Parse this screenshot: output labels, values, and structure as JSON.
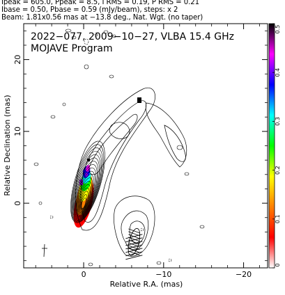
{
  "header": {
    "line1": "Ipeak = 605.0, Ppeak = 8.5, I RMS = 0.19, P RMS = 0.21",
    "line2": "Ibase = 0.50, Pbase = 0.59 (mJy/beam), steps: x 2",
    "line3": "Beam: 1.81x0.56 mas at −13.8 deg., Nat. Wgt. (no taper)"
  },
  "chart_data": {
    "type": "contour",
    "title": "2022−077, 2009−10−27, VLBA 15.4 GHz",
    "subtitle": "MOJAVE Program",
    "xlabel": "Relative R.A. (mas)",
    "ylabel": "Relative Declination (mas)",
    "xlim": [
      7.5,
      -23
    ],
    "ylim": [
      -9,
      25
    ],
    "x_ticks": [
      0,
      -10,
      -20
    ],
    "x_tick_labels": [
      "0",
      "−10",
      "−20"
    ],
    "y_ticks": [
      0,
      10,
      20
    ],
    "y_tick_labels": [
      "0",
      "10",
      "20"
    ],
    "colorbar": {
      "min": 0,
      "max": 0.5,
      "ticks": [
        0,
        0.1,
        0.2,
        0.3,
        0.4,
        0.5
      ],
      "tick_labels": [
        "0",
        "0.1",
        "0.2",
        "0.3",
        "0.4",
        "0.5"
      ],
      "colors": [
        "#ffffff",
        "#ff0000",
        "#ff8000",
        "#ffff00",
        "#00ff00",
        "#00ffff",
        "#0000ff",
        "#ff00ff",
        "#000000"
      ]
    },
    "core": {
      "ra": 0,
      "dec": 0,
      "peak_mJy": 605.0
    },
    "jet_ridge": [
      {
        "ra": 0.2,
        "dec": 0.0
      },
      {
        "ra": -0.6,
        "dec": 3.0
      },
      {
        "ra": -1.5,
        "dec": 6.5
      },
      {
        "ra": -3.5,
        "dec": 9.0
      },
      {
        "ra": -6.5,
        "dec": 11.0
      },
      {
        "ra": -10,
        "dec": 9.0
      },
      {
        "ra": -11.5,
        "dec": 6.0
      }
    ],
    "beam": {
      "major_mas": 1.81,
      "minor_mas": 0.56,
      "pa_deg": -13.8,
      "ra": -6.3,
      "dec": -5.4
    },
    "grid": false
  }
}
